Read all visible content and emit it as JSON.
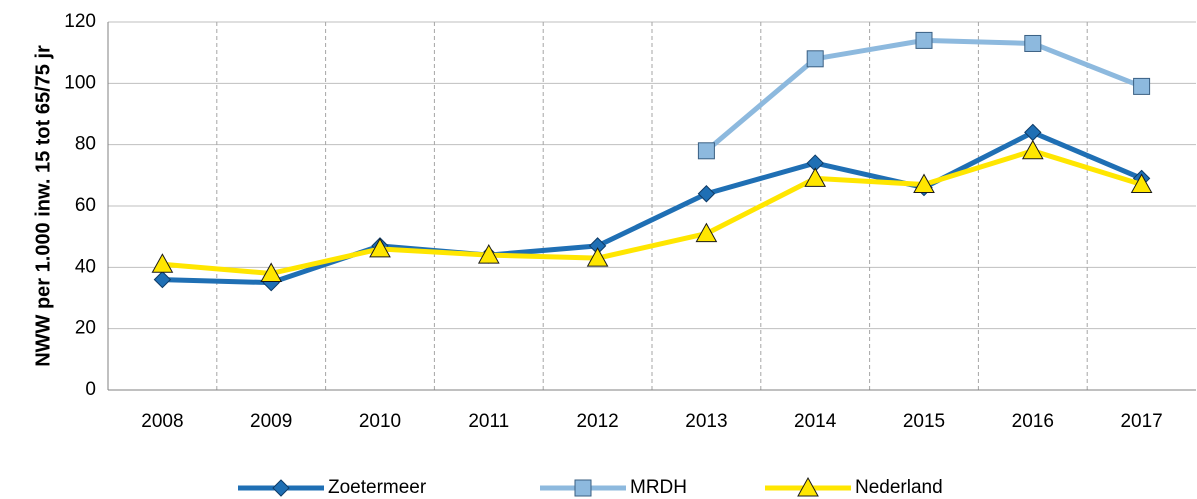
{
  "chart_data": {
    "type": "line",
    "y_label": "NWW per 1.000 inw. 15 tot 65/75 jr",
    "categories": [
      "2008",
      "2009",
      "2010",
      "2011",
      "2012",
      "2013",
      "2014",
      "2015",
      "2016",
      "2017"
    ],
    "series": [
      {
        "name": "Zoetermeer",
        "color": "#1f6fb4",
        "marker": "diamond",
        "values": [
          36,
          35,
          47,
          44,
          47,
          64,
          74,
          66,
          84,
          69
        ]
      },
      {
        "name": "MRDH",
        "color": "#8db9de",
        "marker": "square",
        "values": [
          null,
          null,
          null,
          null,
          null,
          78,
          108,
          114,
          113,
          99
        ]
      },
      {
        "name": "Nederland",
        "color": "#ffe600",
        "marker": "triangle",
        "values": [
          41,
          38,
          46,
          44,
          43,
          51,
          69,
          67,
          78,
          67
        ]
      }
    ],
    "ylim": [
      0,
      120
    ],
    "yticks": [
      0,
      20,
      40,
      60,
      80,
      100,
      120
    ],
    "grid": true,
    "legend": "bottom"
  }
}
